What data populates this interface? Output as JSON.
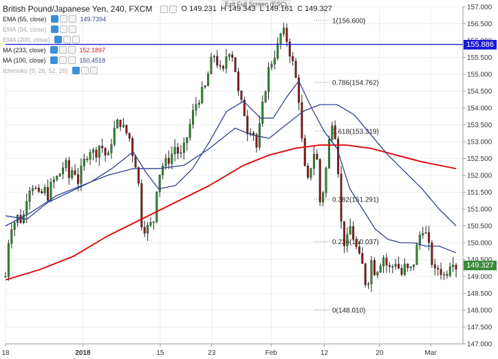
{
  "exit_label": "Exit Full Screen (ESC)",
  "legend": {
    "title": "British Pound/Japanese Yen, 240, FXCM",
    "ohlc": {
      "o": "O 149.231",
      "h": "H 149.343",
      "l": "L 149.161",
      "c": "C 149.327"
    },
    "indicators": [
      {
        "label": "EMA (55, close)",
        "value": "149.7394",
        "color": "#2f3f8f",
        "value_color": "#2f3f8f"
      },
      {
        "label": "EMA (34, close)",
        "value": "",
        "color": "#999999"
      },
      {
        "label": "EMA (200, close)",
        "value": "",
        "color": "#999999"
      },
      {
        "label": "MA (233, close)",
        "value": "152.1897",
        "color": "#e01010",
        "value_color": "#e01010"
      },
      {
        "label": "MA (100, close)",
        "value": "150.4518",
        "color": "#2f3f8f",
        "value_color": "#2f3f8f"
      },
      {
        "label": "Ichimoku (9, 26, 52, 26)",
        "value": "",
        "color": "#999999"
      }
    ]
  },
  "price_tags": {
    "hline": {
      "value": 155.886,
      "label": "155.886",
      "color": "#1a1adb"
    },
    "last": {
      "value": 149.327,
      "label": "149.327",
      "color": "#3a8a3a"
    }
  },
  "chart_data": {
    "type": "line",
    "series_kind": "candlestick",
    "ylim": [
      147.0,
      157.0
    ],
    "yticks": [
      "157.000",
      "156.500",
      "156.000",
      "155.500",
      "155.000",
      "154.500",
      "154.000",
      "153.500",
      "153.000",
      "152.500",
      "152.000",
      "151.500",
      "151.000",
      "150.500",
      "150.000",
      "149.500",
      "149.000",
      "148.500",
      "148.000",
      "147.500",
      "147.000"
    ],
    "xticks": [
      {
        "label": "18",
        "t": 0.0,
        "bold": false
      },
      {
        "label": "2018",
        "t": 0.182,
        "bold": true
      },
      {
        "label": "15",
        "t": 0.364,
        "bold": false
      },
      {
        "label": "23",
        "t": 0.485,
        "bold": false
      },
      {
        "label": "Feb",
        "t": 0.625,
        "bold": false
      },
      {
        "label": "12",
        "t": 0.75,
        "bold": false
      },
      {
        "label": "20",
        "t": 0.88,
        "bold": false
      },
      {
        "label": "Mar",
        "t": 1.0,
        "bold": false
      }
    ],
    "close_path": [
      [
        0.0,
        149.0
      ],
      [
        0.01,
        150.5
      ],
      [
        0.02,
        150.6
      ],
      [
        0.03,
        150.8
      ],
      [
        0.04,
        150.6
      ],
      [
        0.05,
        151.4
      ],
      [
        0.06,
        151.8
      ],
      [
        0.07,
        151.6
      ],
      [
        0.08,
        151.3
      ],
      [
        0.09,
        151.6
      ],
      [
        0.1,
        151.4
      ],
      [
        0.11,
        151.8
      ],
      [
        0.12,
        151.9
      ],
      [
        0.13,
        152.1
      ],
      [
        0.14,
        152.4
      ],
      [
        0.15,
        151.9
      ],
      [
        0.16,
        152.3
      ],
      [
        0.17,
        151.8
      ],
      [
        0.18,
        152.2
      ],
      [
        0.19,
        152.6
      ],
      [
        0.2,
        152.8
      ],
      [
        0.21,
        152.6
      ],
      [
        0.22,
        152.9
      ],
      [
        0.23,
        152.8
      ],
      [
        0.24,
        152.4
      ],
      [
        0.25,
        153.1
      ],
      [
        0.26,
        153.5
      ],
      [
        0.27,
        153.6
      ],
      [
        0.28,
        153.3
      ],
      [
        0.29,
        153.2
      ],
      [
        0.3,
        152.6
      ],
      [
        0.31,
        152.2
      ],
      [
        0.32,
        150.6
      ],
      [
        0.33,
        150.4
      ],
      [
        0.34,
        150.5
      ],
      [
        0.35,
        150.7
      ],
      [
        0.355,
        151.6
      ],
      [
        0.36,
        152.0
      ],
      [
        0.37,
        152.3
      ],
      [
        0.38,
        152.4
      ],
      [
        0.39,
        152.6
      ],
      [
        0.4,
        152.9
      ],
      [
        0.41,
        152.5
      ],
      [
        0.42,
        152.8
      ],
      [
        0.43,
        153.3
      ],
      [
        0.44,
        153.8
      ],
      [
        0.45,
        154.2
      ],
      [
        0.46,
        154.4
      ],
      [
        0.47,
        154.6
      ],
      [
        0.48,
        155.2
      ],
      [
        0.49,
        155.6
      ],
      [
        0.5,
        155.3
      ],
      [
        0.51,
        154.9
      ],
      [
        0.52,
        155.6
      ],
      [
        0.53,
        155.8
      ],
      [
        0.54,
        155.2
      ],
      [
        0.55,
        154.2
      ],
      [
        0.56,
        154.0
      ],
      [
        0.57,
        153.3
      ],
      [
        0.58,
        153.5
      ],
      [
        0.59,
        152.8
      ],
      [
        0.6,
        153.6
      ],
      [
        0.61,
        154.5
      ],
      [
        0.62,
        155.2
      ],
      [
        0.63,
        155.5
      ],
      [
        0.64,
        155.8
      ],
      [
        0.65,
        156.3
      ],
      [
        0.66,
        156.1
      ],
      [
        0.67,
        155.6
      ],
      [
        0.68,
        155.1
      ],
      [
        0.69,
        154.3
      ],
      [
        0.7,
        152.5
      ],
      [
        0.71,
        151.7
      ],
      [
        0.72,
        152.4
      ],
      [
        0.73,
        152.9
      ],
      [
        0.74,
        151.2
      ],
      [
        0.75,
        151.7
      ],
      [
        0.76,
        152.9
      ],
      [
        0.77,
        153.8
      ],
      [
        0.78,
        152.8
      ],
      [
        0.785,
        151.6
      ],
      [
        0.79,
        150.5
      ],
      [
        0.8,
        149.8
      ],
      [
        0.81,
        150.5
      ],
      [
        0.82,
        150.1
      ],
      [
        0.83,
        149.6
      ],
      [
        0.84,
        149.3
      ],
      [
        0.85,
        148.6
      ],
      [
        0.86,
        149.5
      ],
      [
        0.87,
        149.1
      ],
      [
        0.88,
        149.4
      ],
      [
        0.89,
        149.6
      ],
      [
        0.9,
        149.2
      ],
      [
        0.91,
        149.3
      ],
      [
        0.92,
        149.5
      ],
      [
        0.93,
        149.0
      ],
      [
        0.94,
        149.3
      ],
      [
        0.95,
        149.1
      ],
      [
        0.96,
        149.4
      ],
      [
        0.97,
        150.0
      ],
      [
        0.98,
        150.5
      ],
      [
        0.99,
        150.2
      ],
      [
        1.0,
        149.6
      ],
      [
        1.01,
        149.1
      ],
      [
        1.02,
        149.3
      ],
      [
        1.03,
        149.0
      ],
      [
        1.04,
        149.2
      ],
      [
        1.05,
        149.6
      ],
      [
        1.06,
        149.3
      ]
    ],
    "ema55": [
      [
        0.0,
        150.8
      ],
      [
        0.05,
        150.7
      ],
      [
        0.1,
        151.2
      ],
      [
        0.15,
        151.5
      ],
      [
        0.2,
        151.8
      ],
      [
        0.25,
        152.2
      ],
      [
        0.3,
        152.7
      ],
      [
        0.33,
        152.1
      ],
      [
        0.36,
        151.6
      ],
      [
        0.4,
        151.7
      ],
      [
        0.44,
        152.2
      ],
      [
        0.48,
        153.0
      ],
      [
        0.52,
        153.9
      ],
      [
        0.56,
        154.2
      ],
      [
        0.6,
        153.7
      ],
      [
        0.63,
        153.7
      ],
      [
        0.66,
        154.3
      ],
      [
        0.69,
        154.8
      ],
      [
        0.72,
        154.0
      ],
      [
        0.75,
        153.3
      ],
      [
        0.78,
        152.8
      ],
      [
        0.81,
        151.6
      ],
      [
        0.84,
        151.0
      ],
      [
        0.87,
        150.4
      ],
      [
        0.9,
        150.1
      ],
      [
        0.93,
        150.0
      ],
      [
        0.96,
        150.0
      ],
      [
        0.99,
        149.9
      ],
      [
        1.02,
        149.9
      ],
      [
        1.06,
        149.7
      ]
    ],
    "ma100": [
      [
        0.0,
        150.5
      ],
      [
        0.06,
        150.9
      ],
      [
        0.12,
        151.4
      ],
      [
        0.18,
        151.7
      ],
      [
        0.24,
        152.0
      ],
      [
        0.3,
        152.2
      ],
      [
        0.36,
        152.2
      ],
      [
        0.42,
        152.3
      ],
      [
        0.48,
        152.8
      ],
      [
        0.54,
        153.4
      ],
      [
        0.58,
        153.2
      ],
      [
        0.62,
        153.1
      ],
      [
        0.66,
        153.5
      ],
      [
        0.7,
        153.9
      ],
      [
        0.74,
        154.1
      ],
      [
        0.78,
        154.1
      ],
      [
        0.82,
        153.8
      ],
      [
        0.86,
        153.2
      ],
      [
        0.9,
        152.6
      ],
      [
        0.94,
        152.1
      ],
      [
        0.98,
        151.6
      ],
      [
        1.02,
        151.0
      ],
      [
        1.06,
        150.5
      ]
    ],
    "ma233": [
      [
        0.0,
        148.9
      ],
      [
        0.08,
        149.2
      ],
      [
        0.16,
        149.6
      ],
      [
        0.24,
        150.2
      ],
      [
        0.32,
        150.7
      ],
      [
        0.4,
        151.2
      ],
      [
        0.48,
        151.7
      ],
      [
        0.56,
        152.3
      ],
      [
        0.62,
        152.6
      ],
      [
        0.68,
        152.8
      ],
      [
        0.74,
        152.9
      ],
      [
        0.8,
        152.9
      ],
      [
        0.86,
        152.8
      ],
      [
        0.92,
        152.6
      ],
      [
        0.98,
        152.4
      ],
      [
        1.06,
        152.2
      ]
    ],
    "fib_levels": [
      {
        "ratio": "1",
        "label": "1(156.600)",
        "value": 156.6
      },
      {
        "ratio": "0.786",
        "label": "0.786(154.762)",
        "value": 154.762
      },
      {
        "ratio": "0.618",
        "label": "0.618(153.319)",
        "value": 153.319
      },
      {
        "ratio": "0.382",
        "label": "0.382(151.291)",
        "value": 151.291
      },
      {
        "ratio": "0.236",
        "label": "0.236(150.037)",
        "value": 150.037
      },
      {
        "ratio": "0",
        "label": "0(148.010)",
        "value": 148.01
      }
    ]
  }
}
